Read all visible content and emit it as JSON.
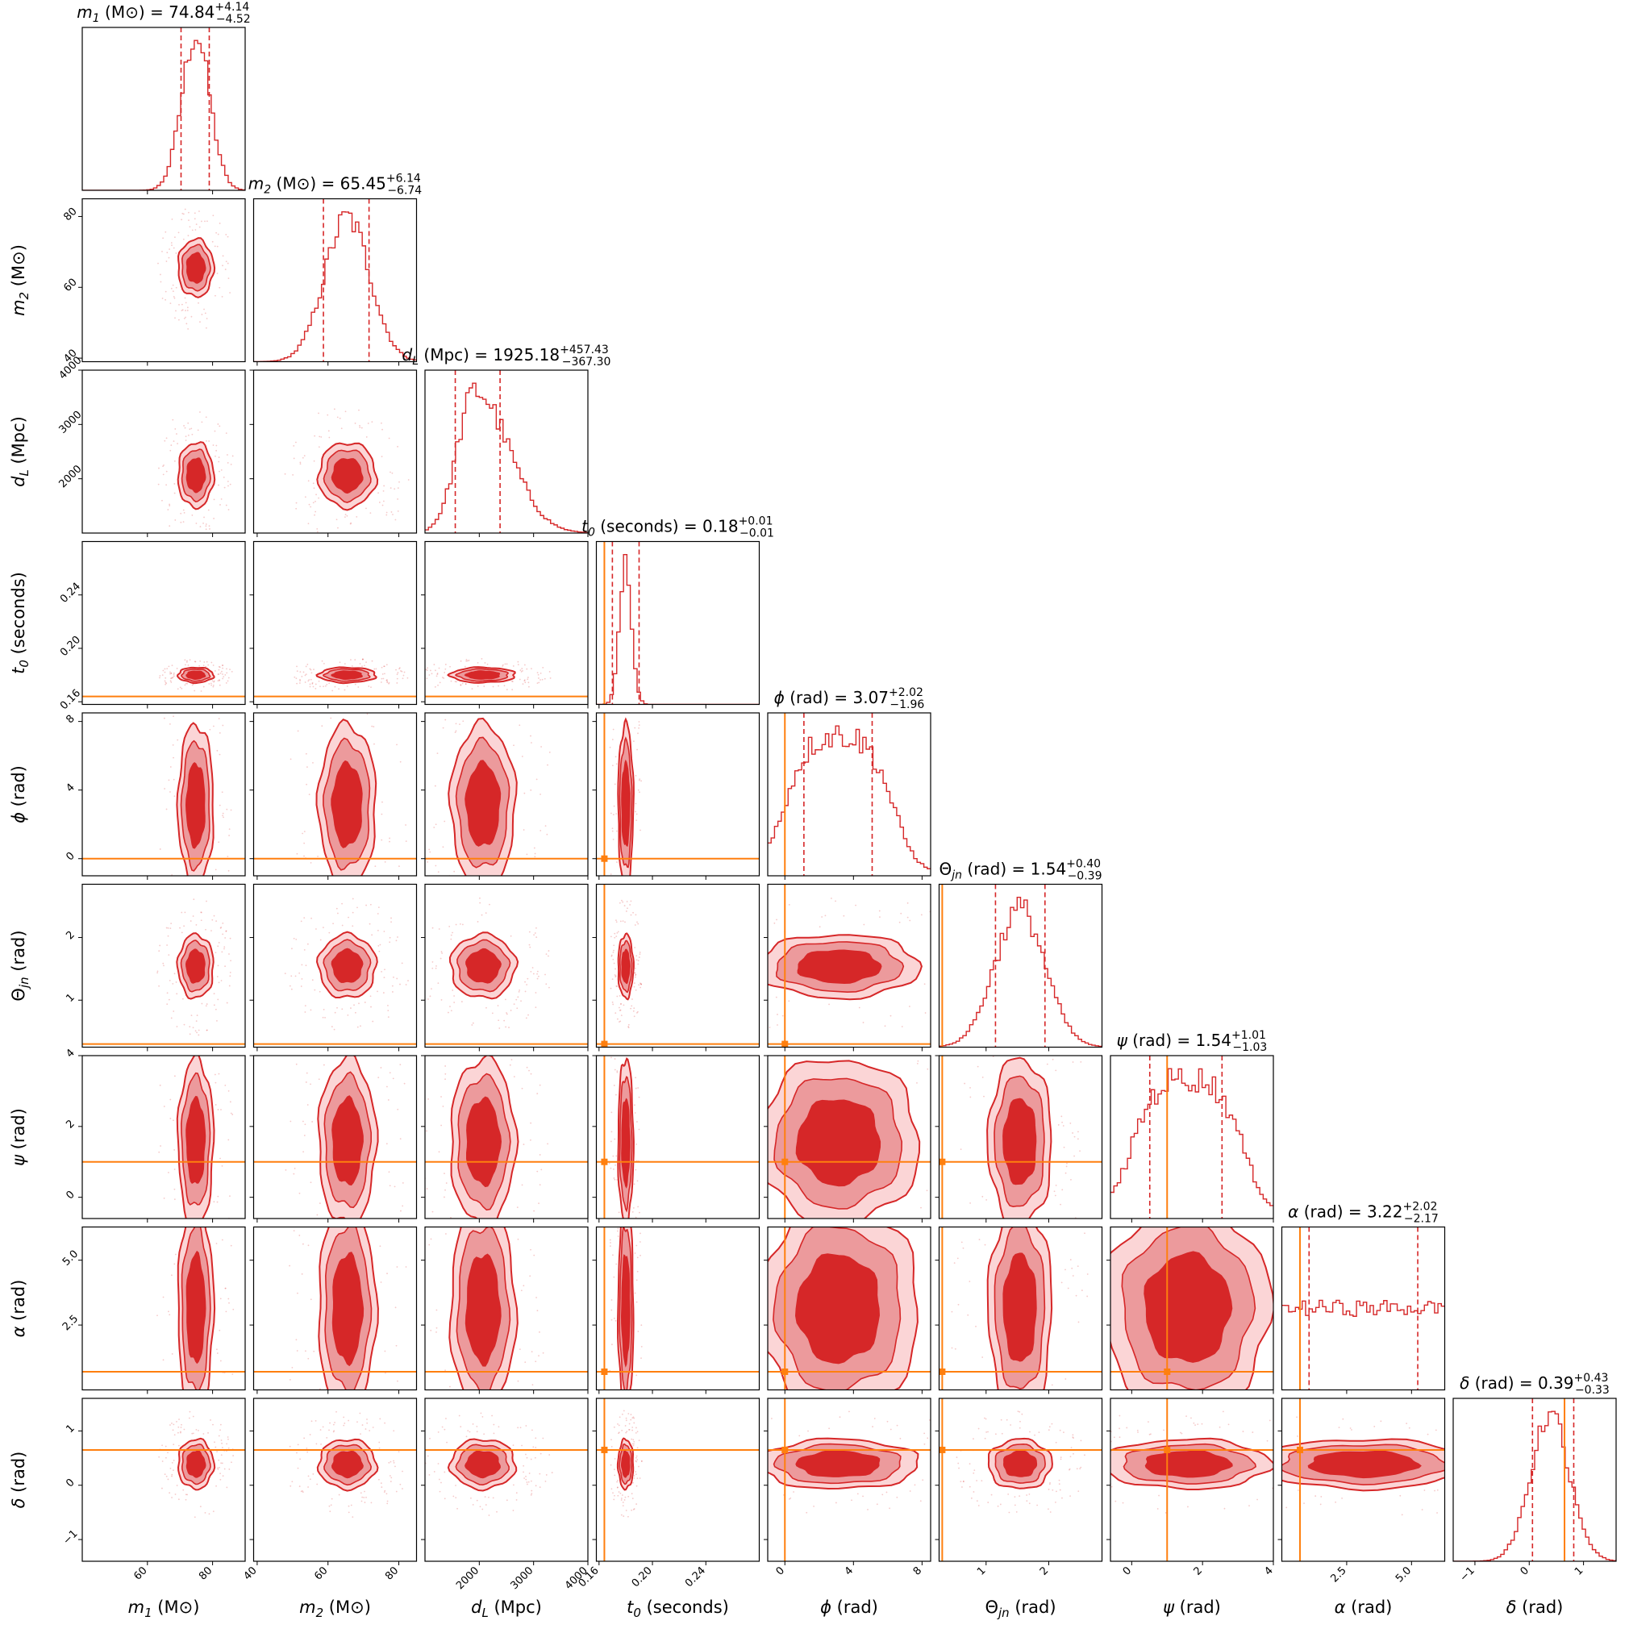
{
  "chart_data": {
    "type": "corner",
    "series": [
      {
        "name": "posterior",
        "color": "#d62728"
      }
    ],
    "truth_color": "#ff7f0e",
    "parameters": [
      {
        "key": "m1",
        "sym": "m",
        "sub": "1",
        "italic": true,
        "unit": "(M⊙)",
        "label": "m1 (M⊙)",
        "median": "74.84",
        "plus": "+4.14",
        "minus": "−4.52",
        "range": [
          40,
          90
        ],
        "ticks": [
          "60",
          "80"
        ],
        "tickvals": [
          60,
          80
        ],
        "mu": 74.84,
        "sigma": 4.3,
        "dist": "normal",
        "truth": null
      },
      {
        "key": "m2",
        "sym": "m",
        "sub": "2",
        "italic": true,
        "unit": "(M⊙)",
        "label": "m2 (M⊙)",
        "median": "65.45",
        "plus": "+6.14",
        "minus": "−6.74",
        "range": [
          39,
          85
        ],
        "ticks": [
          "40",
          "60",
          "80"
        ],
        "tickvals": [
          40,
          60,
          80
        ],
        "mu": 65.45,
        "sigma": 6.4,
        "dist": "normal",
        "truth": null
      },
      {
        "key": "dL",
        "sym": "d",
        "sub": "L",
        "italic": true,
        "unit": "(Mpc)",
        "label": "dL (Mpc)",
        "median": "1925.18",
        "plus": "+457.43",
        "minus": "−367.30",
        "range": [
          1000,
          4000
        ],
        "ticks": [
          "2000",
          "3000",
          "4000"
        ],
        "tickvals": [
          2000,
          3000,
          4000
        ],
        "mu": 1925,
        "sigma": 410,
        "dist": "skew",
        "truth": null
      },
      {
        "key": "t0",
        "sym": "t",
        "sub": "0",
        "italic": true,
        "unit": "(seconds)",
        "label": "t0 (seconds)",
        "median": "0.18",
        "plus": "+0.01",
        "minus": "−0.01",
        "range": [
          0.158,
          0.28
        ],
        "ticks": [
          "0.16",
          "0.20",
          "0.24"
        ],
        "tickvals": [
          0.16,
          0.2,
          0.24
        ],
        "mu": 0.18,
        "sigma": 0.0045,
        "dist": "normal",
        "truth": 0.164
      },
      {
        "key": "phi",
        "sym": "ϕ",
        "sub": "",
        "italic": true,
        "unit": "(rad)",
        "label": "ϕ (rad)",
        "median": "3.07",
        "plus": "+2.02",
        "minus": "−1.96",
        "range": [
          -1,
          8.5
        ],
        "ticks": [
          "0",
          "4",
          "8"
        ],
        "tickvals": [
          0,
          4,
          8
        ],
        "mu": 3.07,
        "sigma": 2.0,
        "dist": "flat",
        "lo": 0,
        "hi": 6.28,
        "truth": 0.0
      },
      {
        "key": "theta",
        "sym": "Θ",
        "sub": "jn",
        "italic": false,
        "unit": "(rad)",
        "label": "Θjn (rad)",
        "median": "1.54",
        "plus": "+0.40",
        "minus": "−0.39",
        "range": [
          0.25,
          2.85
        ],
        "ticks": [
          "1",
          "2"
        ],
        "tickvals": [
          1,
          2
        ],
        "mu": 1.54,
        "sigma": 0.4,
        "dist": "normal",
        "truth": 0.3
      },
      {
        "key": "psi",
        "sym": "ψ",
        "sub": "",
        "italic": true,
        "unit": "(rad)",
        "label": "ψ (rad)",
        "median": "1.54",
        "plus": "+1.01",
        "minus": "−1.03",
        "range": [
          -0.6,
          4.0
        ],
        "ticks": [
          "0",
          "2",
          "4"
        ],
        "tickvals": [
          0,
          2,
          4
        ],
        "mu": 1.54,
        "sigma": 1.0,
        "dist": "flat",
        "lo": 0,
        "hi": 3.14,
        "truth": 1.0
      },
      {
        "key": "alpha",
        "sym": "α",
        "sub": "",
        "italic": true,
        "unit": "(rad)",
        "label": "α (rad)",
        "median": "3.22",
        "plus": "+2.02",
        "minus": "−2.17",
        "range": [
          0,
          6.28
        ],
        "ticks": [
          "2.5",
          "5.0"
        ],
        "tickvals": [
          2.5,
          5.0
        ],
        "mu": 3.22,
        "sigma": 2.1,
        "dist": "uniform",
        "lo": 0,
        "hi": 6.28,
        "truth": 0.7
      },
      {
        "key": "delta",
        "sym": "δ",
        "sub": "",
        "italic": true,
        "unit": "(rad)",
        "label": "δ (rad)",
        "median": "0.39",
        "plus": "+0.43",
        "minus": "−0.33",
        "range": [
          -1.4,
          1.6
        ],
        "ticks": [
          "−1",
          "0",
          "1"
        ],
        "tickvals": [
          -1,
          0,
          1
        ],
        "mu": 0.39,
        "sigma": 0.36,
        "dist": "normal",
        "truth": 0.65
      }
    ]
  }
}
